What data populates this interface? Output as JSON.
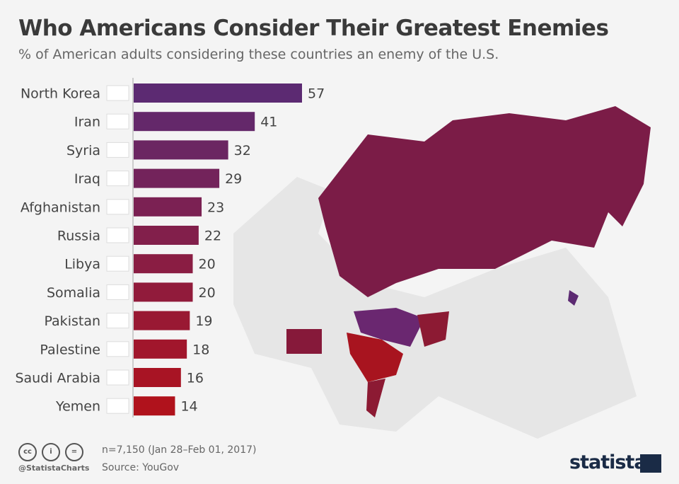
{
  "header": {
    "title": "Who Americans Consider Their Greatest Enemies",
    "subtitle": "% of American adults considering these countries an enemy of the U.S."
  },
  "chart_data": {
    "type": "bar",
    "orientation": "horizontal",
    "categories": [
      "North Korea",
      "Iran",
      "Syria",
      "Iraq",
      "Afghanistan",
      "Russia",
      "Libya",
      "Somalia",
      "Pakistan",
      "Palestine",
      "Saudi Arabia",
      "Yemen"
    ],
    "values": [
      57,
      41,
      32,
      29,
      23,
      22,
      20,
      20,
      19,
      18,
      16,
      14
    ],
    "color_start": "#5c2a72",
    "color_end": "#b0121c",
    "xlim": [
      0,
      60
    ],
    "grid": false
  },
  "footer": {
    "sample": "n=7,150 (Jan 28–Feb 01, 2017)",
    "source": "Source: YouGov",
    "handle": "@StatistaCharts",
    "brand": "statista",
    "license_icons": [
      "cc",
      "by",
      "nd"
    ]
  }
}
